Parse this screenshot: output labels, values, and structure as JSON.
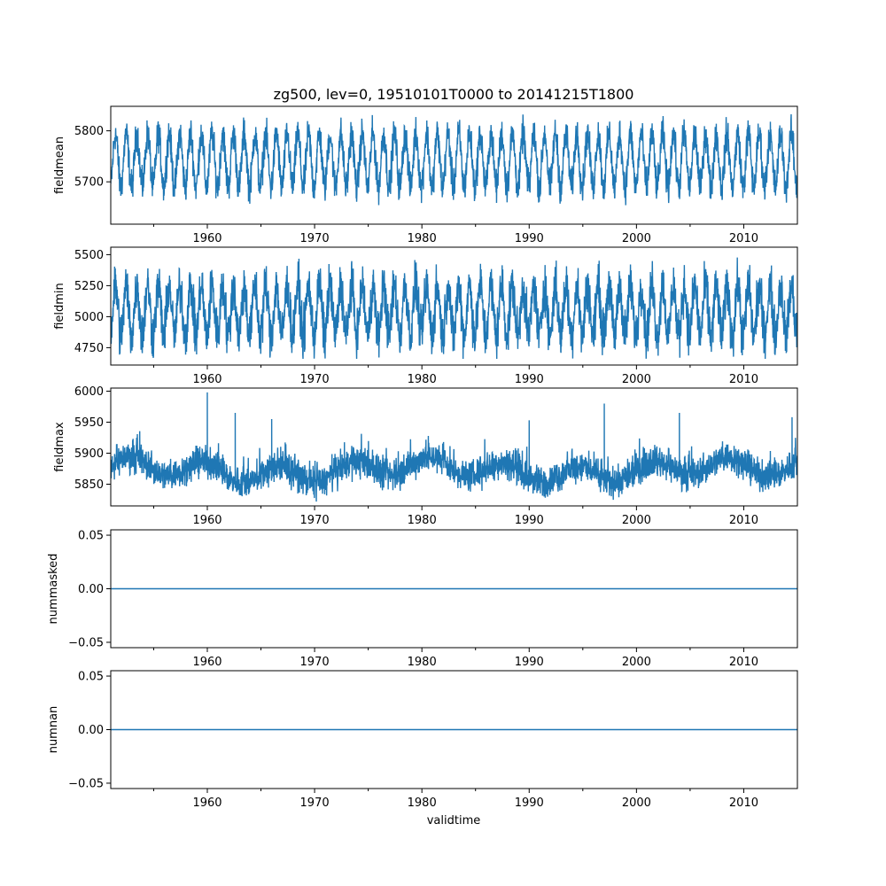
{
  "chart_data": {
    "type": "line",
    "title": "zg500, lev=0, 19510101T0000 to 20141215T1800",
    "xlabel": "validtime",
    "x_range": [
      1951.0,
      2015.0
    ],
    "x_ticks": [
      1960,
      1970,
      1980,
      1990,
      2000,
      2010
    ],
    "x_tick_labels": [
      "1960",
      "1970",
      "1980",
      "1990",
      "2000",
      "2010"
    ],
    "color": "#1f77b4",
    "panels": [
      {
        "ylabel": "fieldmean",
        "ylim": [
          5617,
          5848
        ],
        "yticks": [
          5700,
          5800
        ],
        "ytick_labels": [
          "5700",
          "5800"
        ],
        "series": {
          "name": "fieldmean",
          "kind": "seasonal",
          "mean": 5742,
          "seasonal_amplitude": 52,
          "noise": 16,
          "min": 5622,
          "max": 5838
        }
      },
      {
        "ylabel": "fieldmin",
        "ylim": [
          4610,
          5560
        ],
        "yticks": [
          4750,
          5000,
          5250,
          5500
        ],
        "ytick_labels": [
          "4750",
          "5000",
          "5250",
          "5500"
        ],
        "series": {
          "name": "fieldmin",
          "kind": "seasonal",
          "mean": 5050,
          "seasonal_amplitude": 200,
          "noise": 95,
          "min": 4660,
          "max": 5540
        }
      },
      {
        "ylabel": "fieldmax",
        "ylim": [
          5815,
          6005
        ],
        "yticks": [
          5850,
          5900,
          5950,
          6000
        ],
        "ytick_labels": [
          "5850",
          "5900",
          "5950",
          "6000"
        ],
        "series": {
          "name": "fieldmax",
          "kind": "baseline_spikes",
          "mean": 5872,
          "low_freq_amplitude": 14,
          "noise": 12,
          "min": 5822,
          "max": 5998,
          "spikes": [
            {
              "x": 1960.0,
              "y": 5998
            },
            {
              "x": 1962.6,
              "y": 5965
            },
            {
              "x": 1966.0,
              "y": 5955
            },
            {
              "x": 1990.0,
              "y": 5953
            },
            {
              "x": 1997.0,
              "y": 5980
            },
            {
              "x": 2004.0,
              "y": 5965
            },
            {
              "x": 2014.5,
              "y": 5958
            }
          ]
        }
      },
      {
        "ylabel": "nummasked",
        "ylim": [
          -0.055,
          0.055
        ],
        "yticks": [
          -0.05,
          0.0,
          0.05
        ],
        "ytick_labels": [
          "−0.05",
          "0.00",
          "0.05"
        ],
        "series": {
          "name": "nummasked",
          "kind": "constant",
          "value": 0.0
        }
      },
      {
        "ylabel": "numnan",
        "ylim": [
          -0.055,
          0.055
        ],
        "yticks": [
          -0.05,
          0.0,
          0.05
        ],
        "ytick_labels": [
          "−0.05",
          "0.00",
          "0.05"
        ],
        "series": {
          "name": "numnan",
          "kind": "constant",
          "value": 0.0
        }
      }
    ]
  }
}
